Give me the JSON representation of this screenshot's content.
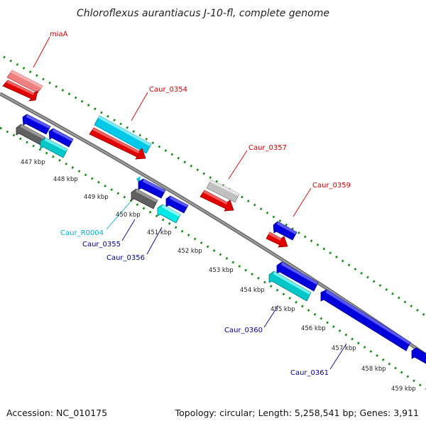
{
  "title": "Chloroflexus aurantiacus J-10-fl, complete genome",
  "footer": {
    "accession": "Accession: NC_010175",
    "summary": "Topology: circular; Length: 5,258,541 bp; Genes: 3,911"
  },
  "colors": {
    "forward_gene": "#e00000",
    "forward_gene_light": "#f08080",
    "forward_pseudo": "#c0c0c0",
    "reverse_gene": "#0000dd",
    "reverse_rna": "#00c8c8",
    "reverse_pseudo": "#606060",
    "backbone": "#888888",
    "tick_marks": "#1a8a1a",
    "label_forward": "#cc0000",
    "label_reverse": "#00008b",
    "label_rna": "#00b0d0"
  },
  "ticks": [
    "447 kbp",
    "448 kbp",
    "449 kbp",
    "450 kbp",
    "451 kbp",
    "452 kbp",
    "453 kbp",
    "454 kbp",
    "455 kbp",
    "456 kbp",
    "457 kbp",
    "458 kbp",
    "459 kbp"
  ],
  "gene_labels": {
    "miaA": "miaA",
    "caur_0354": "Caur_0354",
    "caur_0357": "Caur_0357",
    "caur_0359": "Caur_0359",
    "caur_r0004": "Caur_R0004",
    "caur_0355": "Caur_0355",
    "caur_0356": "Caur_0356",
    "caur_0360": "Caur_0360",
    "caur_0361": "Caur_0361"
  }
}
